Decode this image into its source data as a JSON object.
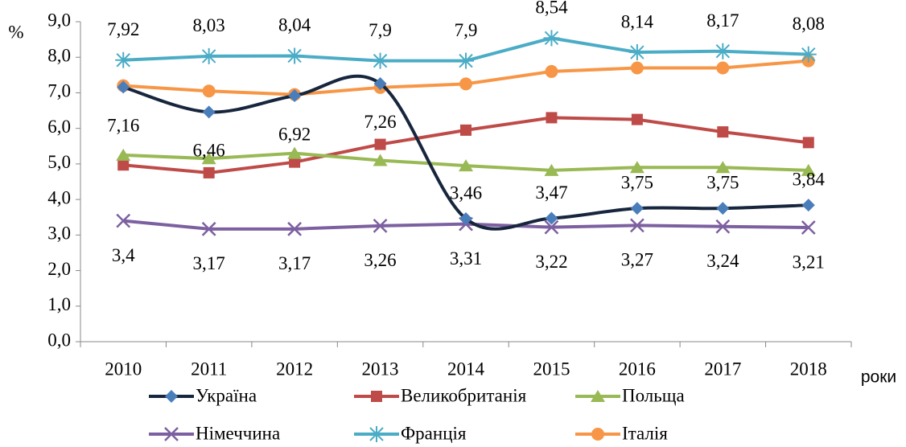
{
  "chart_data": {
    "type": "line",
    "y_label": "%",
    "x_label": "роки",
    "categories": [
      "2010",
      "2011",
      "2012",
      "2013",
      "2014",
      "2015",
      "2016",
      "2017",
      "2018"
    ],
    "ylim": [
      0,
      9
    ],
    "yticks": [
      {
        "value": 0,
        "label": "0,0"
      },
      {
        "value": 1,
        "label": "1,0"
      },
      {
        "value": 2,
        "label": "2,0"
      },
      {
        "value": 3,
        "label": "3,0"
      },
      {
        "value": 4,
        "label": "4,0"
      },
      {
        "value": 5,
        "label": "5,0"
      },
      {
        "value": 6,
        "label": "6,0"
      },
      {
        "value": 7,
        "label": "7,0"
      },
      {
        "value": 8,
        "label": "8,0"
      },
      {
        "value": 9,
        "label": "9,0"
      }
    ],
    "series": [
      {
        "name": "Україна",
        "color": "#17263d",
        "marker_color": "#4a7ebb",
        "marker": "diamond",
        "smooth": true,
        "values": [
          7.16,
          6.46,
          6.92,
          7.26,
          3.46,
          3.47,
          3.75,
          3.75,
          3.84
        ],
        "value_labels": [
          "7,16",
          "6,46",
          "6,92",
          "7,26",
          "3,46",
          "3,47",
          "3,75",
          "3,75",
          "3,84"
        ]
      },
      {
        "name": "Великобританія",
        "color": "#be4b48",
        "marker_color": "#be4b48",
        "marker": "square",
        "values": [
          4.97,
          4.75,
          5.05,
          5.55,
          5.95,
          6.3,
          6.25,
          5.9,
          5.6
        ]
      },
      {
        "name": "Польща",
        "color": "#98b954",
        "marker_color": "#98b954",
        "marker": "triangle",
        "values": [
          5.25,
          5.15,
          5.3,
          5.1,
          4.95,
          4.82,
          4.9,
          4.9,
          4.82
        ]
      },
      {
        "name": "Німеччина",
        "color": "#7d60a0",
        "marker_color": "#7d60a0",
        "marker": "x",
        "values": [
          3.4,
          3.17,
          3.17,
          3.26,
          3.31,
          3.22,
          3.27,
          3.24,
          3.21
        ],
        "value_labels": [
          "3,4",
          "3,17",
          "3,17",
          "3,26",
          "3,31",
          "3,22",
          "3,27",
          "3,24",
          "3,21"
        ]
      },
      {
        "name": "Франція",
        "color": "#4bacc6",
        "marker_color": "#4bacc6",
        "marker": "star",
        "values": [
          7.92,
          8.03,
          8.04,
          7.9,
          7.9,
          8.54,
          8.14,
          8.17,
          8.08
        ],
        "value_labels": [
          "7,92",
          "8,03",
          "8,04",
          "7,9",
          "7,9",
          "8,54",
          "8,14",
          "8,17",
          "8,08"
        ]
      },
      {
        "name": "Італія",
        "color": "#f79646",
        "marker_color": "#f79646",
        "marker": "circle",
        "values": [
          7.2,
          7.05,
          6.95,
          7.15,
          7.25,
          7.6,
          7.7,
          7.7,
          7.9
        ]
      }
    ]
  }
}
